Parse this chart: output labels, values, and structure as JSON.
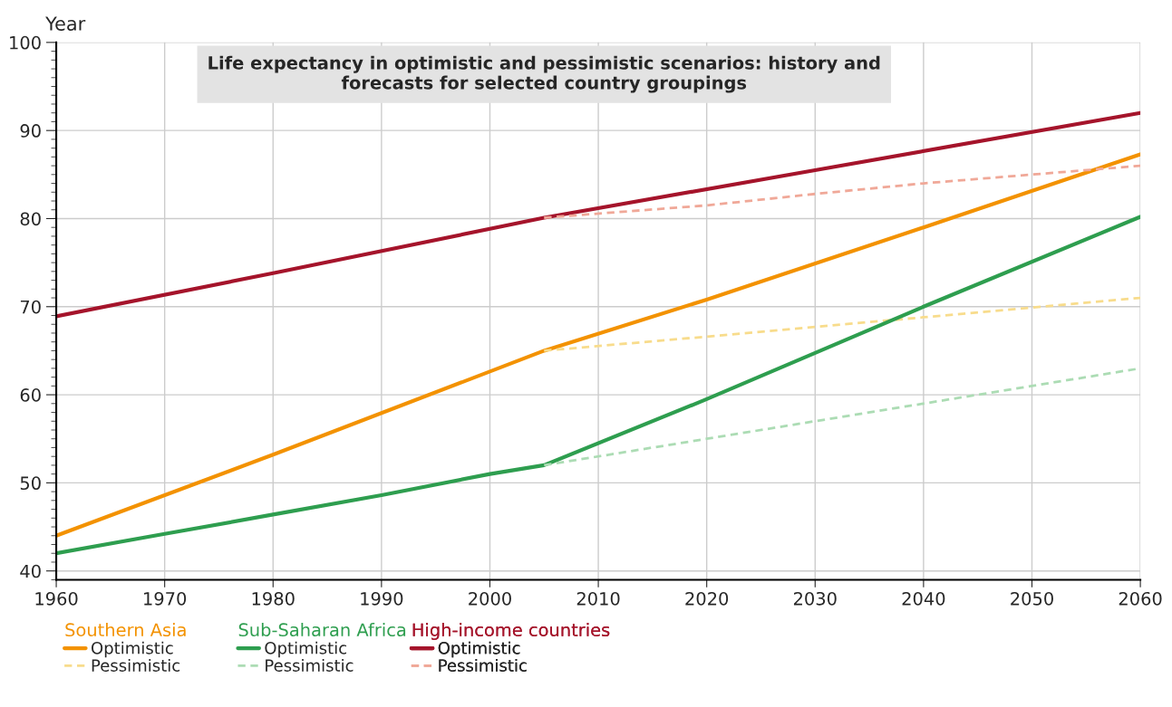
{
  "chart_data": {
    "type": "line",
    "title": "Life expectancy in optimistic and pessimistic scenarios: history and\nforecasts for selected country groupings",
    "ylabel": "Year",
    "xlim": [
      1960,
      2060
    ],
    "xticks": [
      1960,
      1970,
      1980,
      1990,
      2000,
      2010,
      2020,
      2030,
      2040,
      2050,
      2060
    ],
    "ylim": [
      39,
      100
    ],
    "yticks": [
      40,
      50,
      60,
      70,
      80,
      90,
      100
    ],
    "grid": true,
    "legend": "bottom",
    "marker": "none",
    "annotations": [
      "Southern Asia",
      "Sub-Saharan Africa",
      "High-income countries"
    ],
    "series": [
      {
        "name": "Optimistic",
        "color": "#f39200",
        "line_style": "solid",
        "x": [
          1960,
          1980,
          2005,
          2020,
          2040,
          2060
        ],
        "values": [
          44,
          53.2,
          65,
          70.8,
          79,
          87.3
        ]
      },
      {
        "name": "Pessimistic",
        "color": "#f8dc8c",
        "line_style": "dashed",
        "x": [
          2005,
          2020,
          2040,
          2060
        ],
        "values": [
          65,
          66.6,
          68.8,
          71
        ]
      },
      {
        "name": "Optimistic",
        "color": "#2e9e4f",
        "line_style": "solid",
        "x": [
          1960,
          1970,
          1980,
          1990,
          2000,
          2005,
          2020,
          2040,
          2060
        ],
        "values": [
          42,
          44.2,
          46.4,
          48.6,
          51,
          52,
          59.5,
          70,
          80.2
        ]
      },
      {
        "name": "Pessimistic",
        "color": "#acdcb4",
        "line_style": "dashed",
        "x": [
          2005,
          2020,
          2040,
          2060
        ],
        "values": [
          52,
          55,
          59,
          63
        ]
      },
      {
        "name": "Optimistic",
        "color": "#a5142b",
        "line_style": "solid",
        "x": [
          1960,
          1980,
          2005,
          2030,
          2060
        ],
        "values": [
          68.9,
          73.8,
          80.1,
          85.5,
          92
        ]
      },
      {
        "name": "Pessimistic",
        "color": "#f0a898",
        "line_style": "dashed",
        "x": [
          2005,
          2020,
          2030,
          2040,
          2060
        ],
        "values": [
          80.1,
          81.5,
          82.8,
          84,
          86
        ]
      }
    ]
  }
}
